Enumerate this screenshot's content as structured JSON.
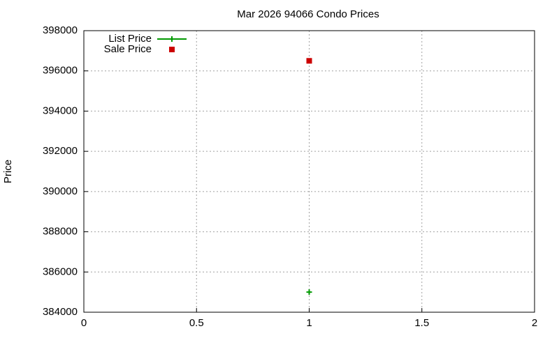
{
  "chart_data": {
    "type": "scatter",
    "title": "Mar 2026 94066 Condo Prices",
    "y_label": "Price",
    "x": [
      1
    ],
    "series": [
      {
        "name": "List Price",
        "color": "#009900",
        "marker": "plus",
        "values": [
          385000
        ]
      },
      {
        "name": "Sale Price",
        "color": "#cc0000",
        "marker": "square",
        "values": [
          396500
        ]
      }
    ],
    "xlim": [
      0,
      2
    ],
    "xticks": [
      0,
      0.5,
      1,
      1.5,
      2
    ],
    "ylim": [
      384000,
      398000
    ],
    "yticks": [
      384000,
      386000,
      388000,
      390000,
      392000,
      394000,
      396000,
      398000
    ],
    "grid": true,
    "legend": "top-left"
  }
}
